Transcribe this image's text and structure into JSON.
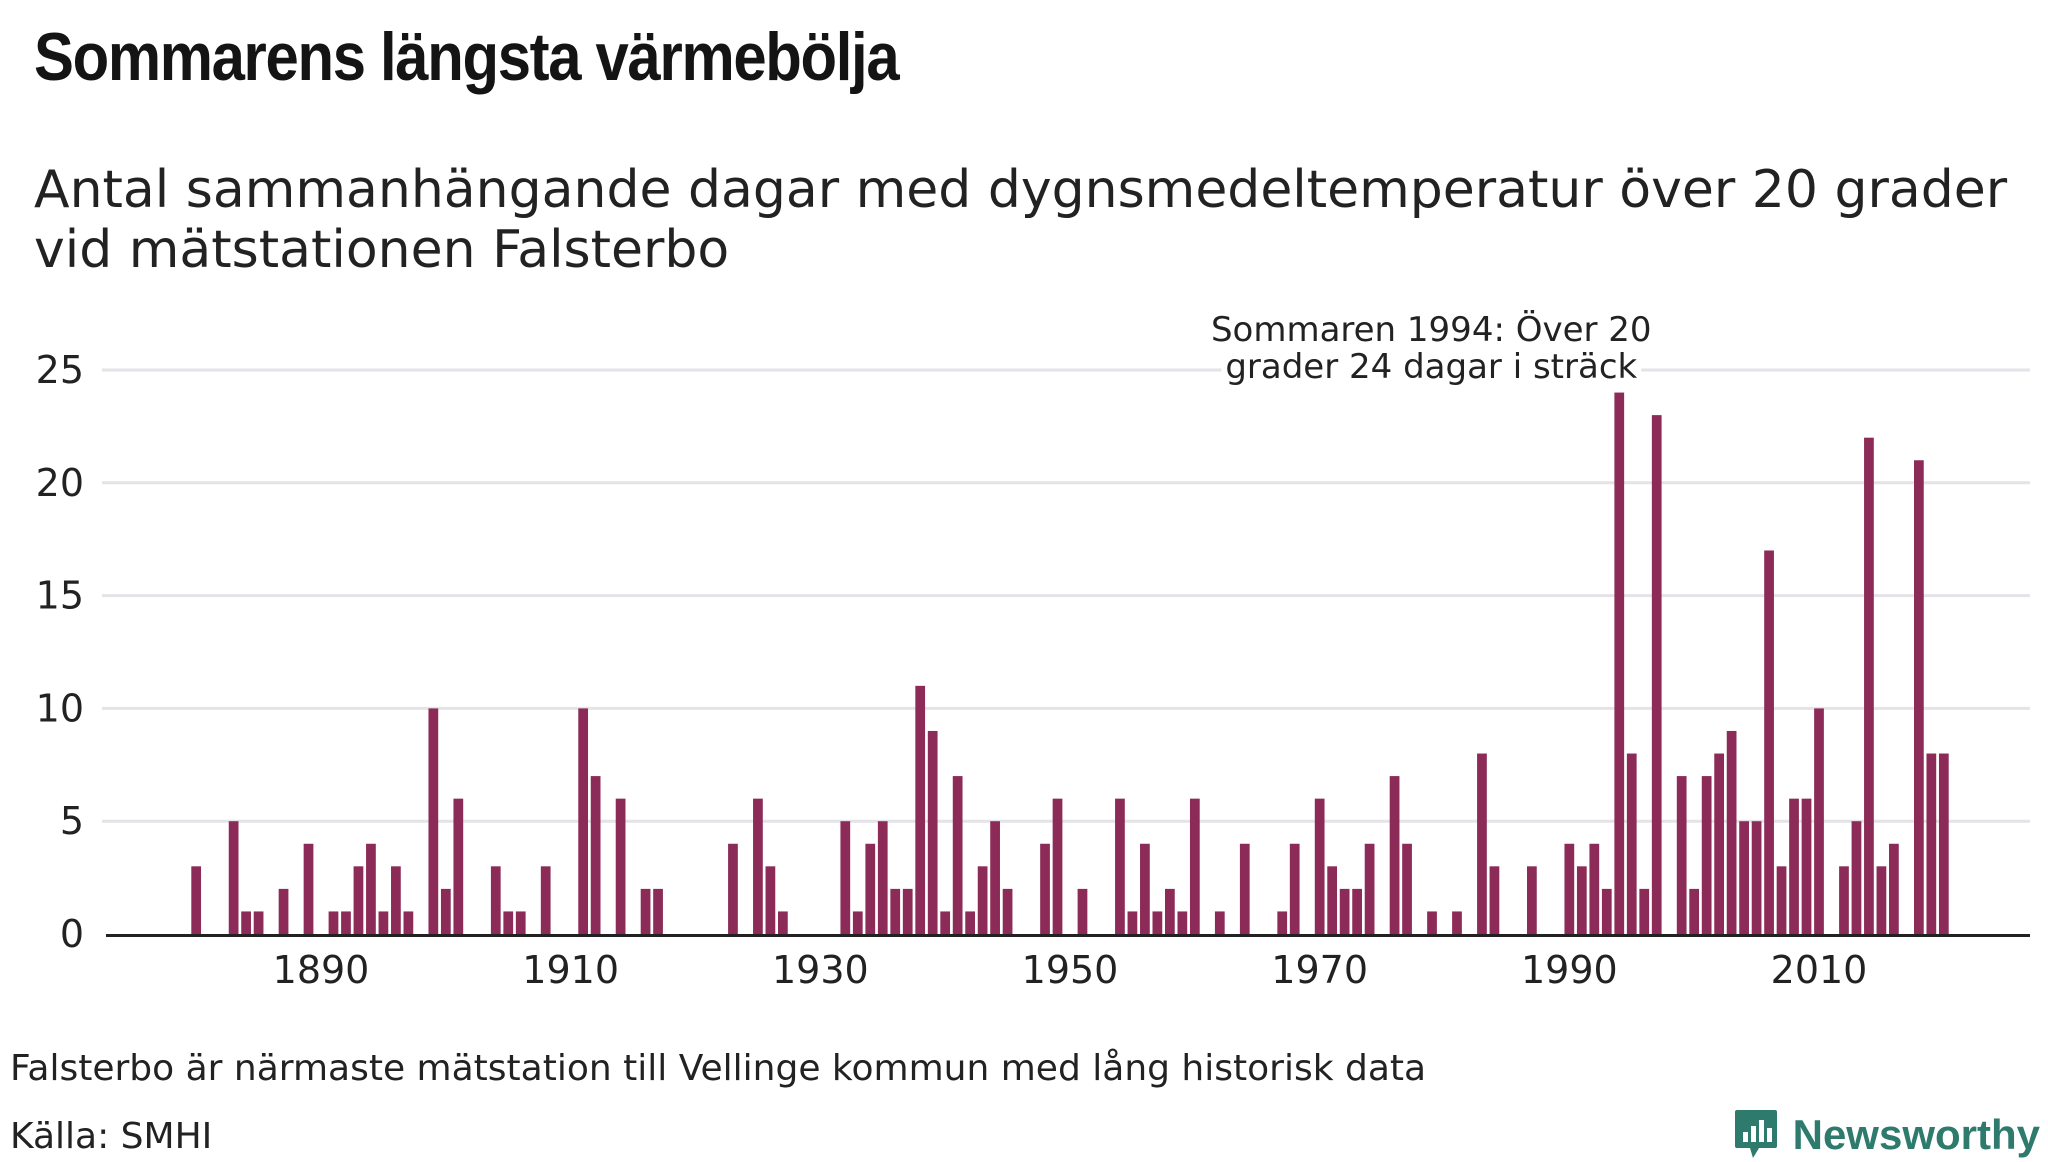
{
  "title": "Sommarens längsta värmebölja",
  "subtitle_lines": [
    "Antal sammanhängande dagar med dygnsmedeltemperatur över 20 grader",
    "vid mätstationen Falsterbo"
  ],
  "caption": "Falsterbo är närmaste mätstation till Vellinge kommun med lång historisk data",
  "source": "Källa: SMHI",
  "brand": {
    "name": "Newsworthy",
    "icon": "newsworthy-logo-icon",
    "color": "#2e7a6c"
  },
  "colors": {
    "bar": "#8c2b57",
    "grid": "#e3e3e8",
    "axis": "#222222"
  },
  "chart_data": {
    "type": "bar",
    "title": "Sommarens längsta värmebölja",
    "ylim": [
      0,
      25
    ],
    "yticks": [
      0,
      5,
      10,
      15,
      20,
      25
    ],
    "xticks": [
      1890,
      1910,
      1930,
      1950,
      1970,
      1990,
      2010
    ],
    "xlim": [
      1874,
      2028
    ],
    "grid": true,
    "annotation": {
      "lines": [
        "Sommaren 1994: Över 20",
        "grader 24 dagar i sträck"
      ],
      "x": 1994,
      "y": 24
    },
    "x": [
      1880,
      1883,
      1884,
      1885,
      1887,
      1889,
      1891,
      1892,
      1893,
      1894,
      1895,
      1896,
      1897,
      1899,
      1900,
      1901,
      1904,
      1905,
      1906,
      1908,
      1911,
      1912,
      1914,
      1916,
      1917,
      1923,
      1925,
      1926,
      1927,
      1932,
      1933,
      1934,
      1935,
      1936,
      1937,
      1938,
      1939,
      1940,
      1941,
      1942,
      1943,
      1944,
      1945,
      1948,
      1949,
      1951,
      1954,
      1955,
      1956,
      1957,
      1958,
      1959,
      1960,
      1962,
      1964,
      1967,
      1968,
      1970,
      1971,
      1972,
      1973,
      1974,
      1976,
      1977,
      1979,
      1981,
      1983,
      1984,
      1987,
      1990,
      1991,
      1992,
      1993,
      1994,
      1995,
      1996,
      1997,
      1999,
      2000,
      2001,
      2002,
      2003,
      2004,
      2005,
      2006,
      2007,
      2008,
      2009,
      2010,
      2012,
      2013,
      2014,
      2015,
      2016,
      2018,
      2019,
      2020
    ],
    "values": [
      3,
      5,
      1,
      1,
      2,
      4,
      1,
      1,
      3,
      4,
      1,
      3,
      1,
      10,
      2,
      6,
      3,
      1,
      1,
      3,
      10,
      7,
      6,
      2,
      2,
      4,
      6,
      3,
      1,
      5,
      1,
      4,
      5,
      2,
      2,
      11,
      9,
      1,
      7,
      1,
      3,
      5,
      2,
      4,
      6,
      2,
      6,
      1,
      4,
      1,
      2,
      1,
      6,
      1,
      4,
      1,
      4,
      6,
      3,
      2,
      2,
      4,
      7,
      4,
      1,
      1,
      8,
      3,
      3,
      4,
      3,
      4,
      2,
      24,
      8,
      2,
      23,
      7,
      2,
      7,
      8,
      9,
      5,
      5,
      17,
      3,
      6,
      6,
      10,
      3,
      5,
      22,
      3,
      4,
      21,
      8,
      8
    ]
  }
}
